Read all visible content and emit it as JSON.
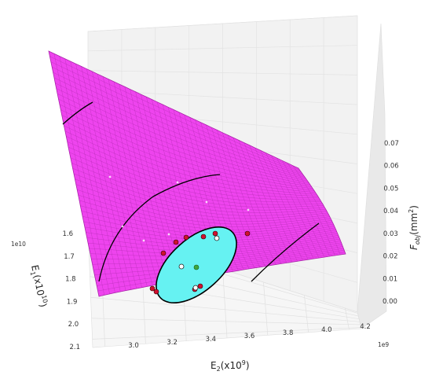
{
  "chart_data": {
    "type": "surface3d",
    "title": "",
    "surface_color": "#ee44ee",
    "mesh_color": "#8a1a8a",
    "feasible_region_color": "#66f2f2",
    "contour_color": "#000000",
    "x_axis": {
      "label": "E",
      "label_sub": "1",
      "label_rest": "(x10",
      "label_sup": "10",
      "label_end": ")",
      "offset_text": "1e10",
      "ticks": [
        "1.6",
        "1.7",
        "1.8",
        "1.9",
        "2.0",
        "2.1"
      ],
      "range": [
        1.6,
        2.1
      ]
    },
    "y_axis": {
      "label": "E",
      "label_sub": "2",
      "label_rest": "(x10",
      "label_sup": "9",
      "label_end": ")",
      "offset_text": "1e9",
      "ticks": [
        "3.0",
        "3.2",
        "3.4",
        "3.6",
        "3.8",
        "4.0",
        "4.2"
      ],
      "range": [
        3.0,
        4.2
      ]
    },
    "z_axis": {
      "label": "F",
      "label_sub": "obj",
      "label_rest": "(mm",
      "label_sup": "2",
      "label_end": ")",
      "ticks": [
        "0.00",
        "0.01",
        "0.02",
        "0.03",
        "0.04",
        "0.05",
        "0.06",
        "0.07"
      ],
      "range": [
        0.0,
        0.07
      ]
    },
    "grid": true,
    "point_colors": {
      "red": "#d01030",
      "open": "#ffffff",
      "optimum": "#3da83d"
    }
  }
}
